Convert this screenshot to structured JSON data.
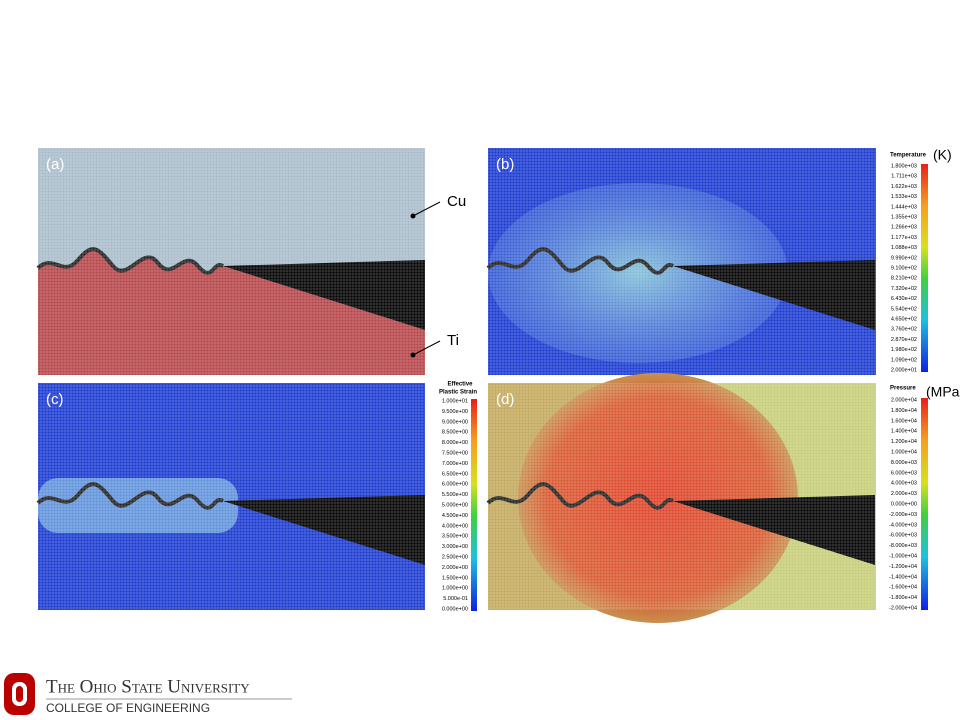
{
  "panels": [
    {
      "label": "(a)"
    },
    {
      "label": "(b)"
    },
    {
      "label": "(c)"
    },
    {
      "label": "(d)"
    }
  ],
  "materials": {
    "top": "Cu",
    "bottom": "Ti"
  },
  "colorbars": {
    "temperature": {
      "title": "Temperature",
      "unit": "(K)",
      "labels": [
        "1.800e+03",
        "1.711e+03",
        "1.622e+03",
        "1.533e+03",
        "1.444e+03",
        "1.355e+03",
        "1.266e+03",
        "1.177e+03",
        "1.088e+03",
        "9.990e+02",
        "9.100e+02",
        "8.210e+02",
        "7.320e+02",
        "6.430e+02",
        "5.540e+02",
        "4.650e+02",
        "3.760e+02",
        "2.870e+02",
        "1.980e+02",
        "1.090e+02",
        "2.000e+01"
      ]
    },
    "strain": {
      "title_lines": [
        "Effective",
        "Plastic Strain"
      ],
      "labels": [
        "1.000e+01",
        "9.500e+00",
        "9.000e+00",
        "8.500e+00",
        "8.000e+00",
        "7.500e+00",
        "7.000e+00",
        "6.500e+00",
        "6.000e+00",
        "5.500e+00",
        "5.000e+00",
        "4.500e+00",
        "4.000e+00",
        "3.500e+00",
        "3.000e+00",
        "2.500e+00",
        "2.000e+00",
        "1.500e+00",
        "1.000e+00",
        "5.000e-01",
        "0.000e+00"
      ]
    },
    "pressure": {
      "title": "Pressure",
      "unit": "(MPa)",
      "labels": [
        "2.000e+04",
        "1.800e+04",
        "1.600e+04",
        "1.400e+04",
        "1.200e+04",
        "1.000e+04",
        "8.000e+03",
        "6.000e+03",
        "4.000e+03",
        "2.000e+03",
        "0.000e+00",
        "-2.000e+03",
        "-4.000e+03",
        "-6.000e+03",
        "-8.000e+03",
        "-1.000e+04",
        "-1.200e+04",
        "-1.400e+04",
        "-1.600e+04",
        "-1.800e+04",
        "-2.000e+04"
      ]
    }
  },
  "footer": {
    "university": "The Ohio State University",
    "college": "COLLEGE OF ENGINEERING"
  }
}
